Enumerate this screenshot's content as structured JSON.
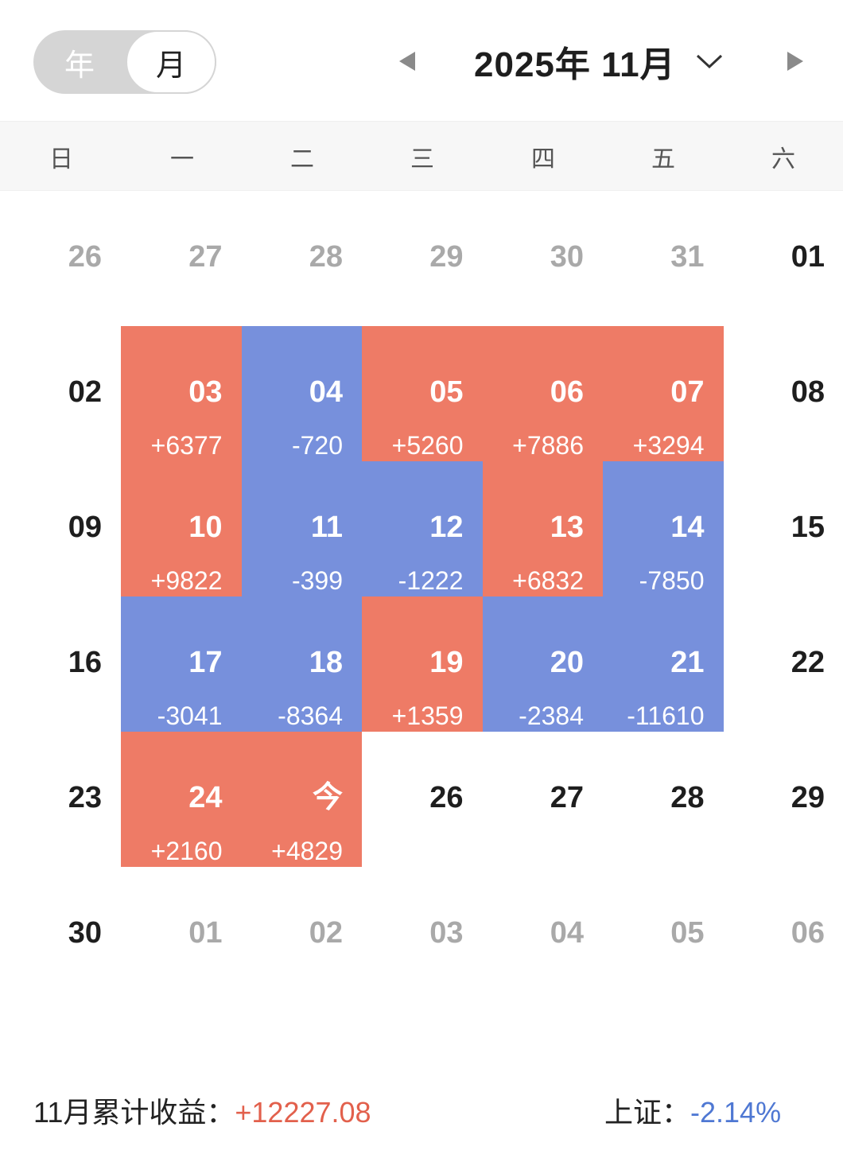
{
  "header": {
    "toggle": {
      "year_label": "年",
      "month_label": "月",
      "selected": "月"
    },
    "month_title": "2025年 11月",
    "icons": {
      "prev": "triangle-left-icon",
      "next": "triangle-right-icon",
      "dropdown": "chevron-down-icon"
    }
  },
  "weekdays": [
    "日",
    "一",
    "二",
    "三",
    "四",
    "五",
    "六"
  ],
  "colors": {
    "gain": "#ee7b66",
    "loss": "#7790dc",
    "gain_text": "#e2604c",
    "loss_text": "#4f78d3",
    "muted": "#a9a9a9"
  },
  "weeks": [
    [
      {
        "day": "26",
        "other": true
      },
      {
        "day": "27",
        "other": true
      },
      {
        "day": "28",
        "other": true
      },
      {
        "day": "29",
        "other": true
      },
      {
        "day": "30",
        "other": true
      },
      {
        "day": "31",
        "other": true
      },
      {
        "day": "01"
      }
    ],
    [
      {
        "day": "02"
      },
      {
        "day": "03",
        "pnl": "+6377",
        "trend": "up"
      },
      {
        "day": "04",
        "pnl": "-720",
        "trend": "down"
      },
      {
        "day": "05",
        "pnl": "+5260",
        "trend": "up"
      },
      {
        "day": "06",
        "pnl": "+7886",
        "trend": "up"
      },
      {
        "day": "07",
        "pnl": "+3294",
        "trend": "up"
      },
      {
        "day": "08"
      }
    ],
    [
      {
        "day": "09"
      },
      {
        "day": "10",
        "pnl": "+9822",
        "trend": "up"
      },
      {
        "day": "11",
        "pnl": "-399",
        "trend": "down"
      },
      {
        "day": "12",
        "pnl": "-1222",
        "trend": "down"
      },
      {
        "day": "13",
        "pnl": "+6832",
        "trend": "up"
      },
      {
        "day": "14",
        "pnl": "-7850",
        "trend": "down"
      },
      {
        "day": "15"
      }
    ],
    [
      {
        "day": "16"
      },
      {
        "day": "17",
        "pnl": "-3041",
        "trend": "down"
      },
      {
        "day": "18",
        "pnl": "-8364",
        "trend": "down"
      },
      {
        "day": "19",
        "pnl": "+1359",
        "trend": "up"
      },
      {
        "day": "20",
        "pnl": "-2384",
        "trend": "down"
      },
      {
        "day": "21",
        "pnl": "-11610",
        "trend": "down"
      },
      {
        "day": "22"
      }
    ],
    [
      {
        "day": "23"
      },
      {
        "day": "24",
        "pnl": "+2160",
        "trend": "up"
      },
      {
        "day": "今",
        "pnl": "+4829",
        "trend": "up"
      },
      {
        "day": "26"
      },
      {
        "day": "27"
      },
      {
        "day": "28"
      },
      {
        "day": "29"
      }
    ],
    [
      {
        "day": "30"
      },
      {
        "day": "01",
        "other": true
      },
      {
        "day": "02",
        "other": true
      },
      {
        "day": "03",
        "other": true
      },
      {
        "day": "04",
        "other": true
      },
      {
        "day": "05",
        "other": true
      },
      {
        "day": "06",
        "other": true
      }
    ]
  ],
  "footer": {
    "summary_label": "11月累计收益：",
    "summary_value": "+12227.08",
    "index_label": "上证：",
    "index_value": "-2.14%"
  }
}
